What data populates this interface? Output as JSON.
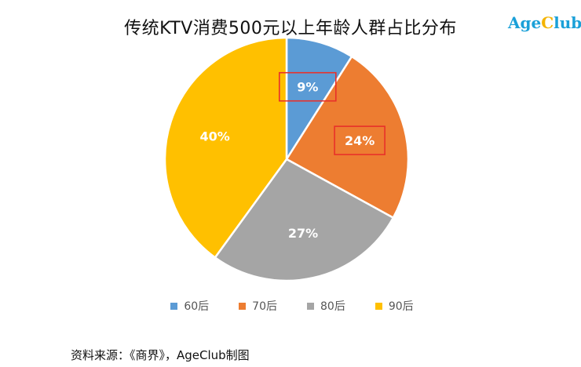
{
  "title": "传统KTV消费500元以上年龄人群占比分布",
  "brand": {
    "main": "Age",
    "accent": "C",
    "rest": "lub"
  },
  "source": "资料来源：《商界》，AgeClub制图",
  "colors": {
    "background": "#ffffff",
    "highlight_box": "#e8302a"
  },
  "highlighted_labels": [
    "9%",
    "24%"
  ],
  "chart_data": {
    "type": "pie",
    "title": "传统KTV消费500元以上年龄人群占比分布",
    "categories": [
      "60后",
      "70后",
      "80后",
      "90后"
    ],
    "values": [
      9,
      24,
      27,
      40
    ],
    "labels": [
      "9%",
      "24%",
      "27%",
      "40%"
    ],
    "colors": [
      "#5b9bd5",
      "#ed7d31",
      "#a5a5a5",
      "#ffc000"
    ],
    "start_angle_deg": 0,
    "direction": "clockwise",
    "legend_position": "bottom",
    "legend": [
      "60后",
      "70后",
      "80后",
      "90后"
    ]
  }
}
